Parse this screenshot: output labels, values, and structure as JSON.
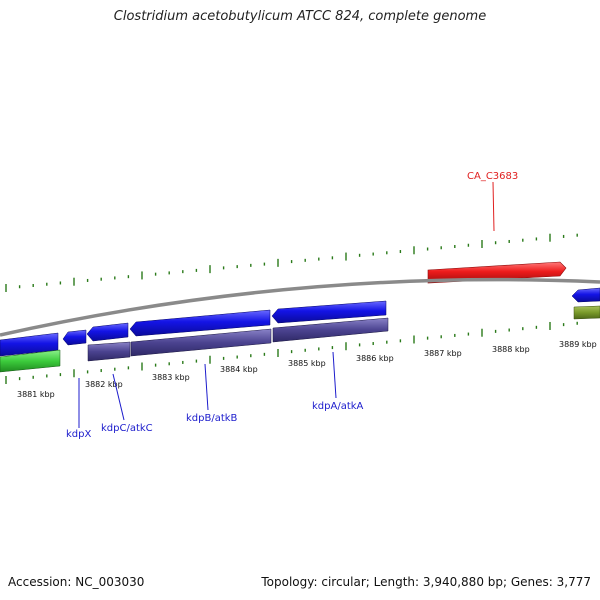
{
  "title": "Clostridium acetobutylicum ATCC 824, complete genome",
  "footer": {
    "accession": "Accession: NC_003030",
    "summary": "Topology: circular; Length: 3,940,880 bp; Genes: 3,777"
  },
  "ticks": [
    "3881 kbp",
    "3882 kbp",
    "3883 kbp",
    "3884 kbp",
    "3885 kbp",
    "3886 kbp",
    "3887 kbp",
    "3888 kbp",
    "3889 kbp"
  ],
  "gene_labels": {
    "kdpX": "kdpX",
    "kdpC": "kdpC/atkC",
    "kdpB": "kdpB/atkB",
    "kdpA": "kdpA/atkA",
    "ca_c3683": "CA_C3683"
  },
  "colors": {
    "forward_gene": "#1414e6",
    "cds_purple": "#4b4390",
    "rna_green": "#3ccc3c",
    "olive": "#7a9a2a",
    "red_gene": "#ee1c1c",
    "backbone": "#8a8a8a",
    "tick_green": "#2a7a1a"
  }
}
